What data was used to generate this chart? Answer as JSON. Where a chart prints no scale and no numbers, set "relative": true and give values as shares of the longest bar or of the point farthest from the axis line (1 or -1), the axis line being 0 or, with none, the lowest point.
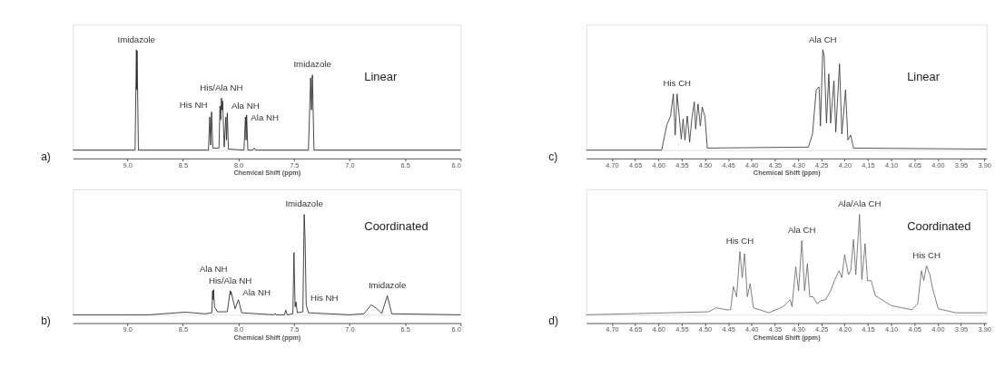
{
  "chart_data": [
    {
      "type": "line",
      "relative": true,
      "xlabel": "Chemical Shift (ppm)",
      "xlim": [
        9.49,
        6.0
      ],
      "xticks": [
        {
          "value": 9,
          "label": "9.0"
        },
        8.5,
        {
          "value": 8,
          "label": "8.0"
        },
        7.5,
        {
          "value": 7,
          "label": "7.0"
        },
        6.5,
        {
          "value": 6,
          "label": "6.0"
        }
      ],
      "grid": false,
      "marker": "none",
      "line_style": "solid",
      "annotations": [
        "a)",
        "Linear",
        {
          "text": "Imidazole",
          "x": 8.918,
          "y": 1.0
        },
        {
          "text": "His/Ala NH",
          "x": 8.153,
          "y": 0.52
        },
        {
          "text": "His NH",
          "x": 8.242,
          "y": 0.38
        },
        {
          "text": "Ala NH",
          "x": 8.1,
          "y": 0.37
        },
        {
          "text": "Ala NH",
          "x": 7.926,
          "y": 0.35
        },
        {
          "text": "Imidazole",
          "x": 7.334,
          "y": 0.75
        }
      ],
      "series": [
        {
          "color": "#222222",
          "x": [
            9.49,
            8.93,
            8.918,
            8.915,
            8.912,
            8.9,
            8.27,
            8.258,
            8.25,
            8.242,
            8.23,
            8.175,
            8.166,
            8.159,
            8.153,
            8.147,
            8.142,
            8.128,
            8.113,
            8.107,
            8.1,
            8.09,
            7.95,
            7.937,
            7.931,
            7.926,
            7.915,
            7.87,
            7.858,
            7.845,
            7.37,
            7.35,
            7.342,
            7.334,
            7.32,
            6.0
          ],
          "values": [
            0,
            0,
            1.0,
            0.6,
            0.99,
            0,
            0,
            0.33,
            0.05,
            0.38,
            0.02,
            0.02,
            0.44,
            0.3,
            0.52,
            0.4,
            0.49,
            0.03,
            0.33,
            0.1,
            0.37,
            0.01,
            0,
            0.33,
            0.1,
            0.35,
            0,
            0,
            0.02,
            0,
            0,
            0.72,
            0.4,
            0.75,
            0,
            0
          ]
        }
      ]
    },
    {
      "type": "line",
      "relative": true,
      "xlabel": "Chemical Shift (ppm)",
      "xlim": [
        4.755,
        3.895
      ],
      "xticks": [
        {
          "value": 4.7,
          "label": "4.70"
        },
        4.65,
        {
          "value": 4.6,
          "label": "4.60"
        },
        4.55,
        {
          "value": 4.5,
          "label": "4.50"
        },
        4.45,
        {
          "value": 4.4,
          "label": "4.40"
        },
        4.35,
        {
          "value": 4.3,
          "label": "4.30"
        },
        4.25,
        {
          "value": 4.2,
          "label": "4.20"
        },
        4.15,
        {
          "value": 4.1,
          "label": "4.10"
        },
        4.05,
        {
          "value": 4,
          "label": "4.00"
        },
        3.95,
        {
          "value": 3.9,
          "label": "3.90"
        }
      ],
      "grid": false,
      "marker": "none",
      "line_style": "solid",
      "annotations": [
        "c)",
        "Linear",
        {
          "text": "His CH",
          "x": 4.56,
          "y": 0.56
        },
        {
          "text": "Ala CH",
          "x": 4.247,
          "y": 1.0
        }
      ],
      "series": [
        {
          "color": "#333333",
          "x": [
            4.755,
            4.593,
            4.582,
            4.574,
            4.568,
            4.564,
            4.56,
            4.555,
            4.551,
            4.547,
            4.543,
            4.538,
            4.533,
            4.528,
            4.523,
            4.52,
            4.515,
            4.51,
            4.506,
            4.5,
            4.495,
            4.278,
            4.269,
            4.261,
            4.255,
            4.252,
            4.247,
            4.244,
            4.239,
            4.234,
            4.23,
            4.223,
            4.219,
            4.211,
            4.206,
            4.198,
            4.193,
            4.187,
            4.181,
            3.895
          ],
          "values": [
            0,
            0,
            0.25,
            0.34,
            0.56,
            0.15,
            0.56,
            0.32,
            0.11,
            0.31,
            0.1,
            0.34,
            0.08,
            0.32,
            0.48,
            0.21,
            0.46,
            0.24,
            0.43,
            0.33,
            0.02,
            0.03,
            0.16,
            0.6,
            0.63,
            0.24,
            1.0,
            0.94,
            0.27,
            0.76,
            0.27,
            0.69,
            0.18,
            0.86,
            0.16,
            0.6,
            0.1,
            0.15,
            0.02,
            0.01
          ]
        }
      ]
    },
    {
      "type": "line",
      "relative": true,
      "xlabel": "Chemical Shift (ppm)",
      "xlim": [
        9.49,
        6.0
      ],
      "xticks": [
        {
          "value": 9,
          "label": "9.0"
        },
        8.5,
        {
          "value": 8,
          "label": "8.0"
        },
        7.5,
        {
          "value": 7,
          "label": "7.0"
        },
        6.5,
        {
          "value": 6,
          "label": "6.0"
        }
      ],
      "grid": false,
      "marker": "none",
      "line_style": "solid",
      "annotations": [
        "b)",
        "Coordinated",
        {
          "text": "Imidazole",
          "x": 7.408,
          "y": 1.0
        },
        {
          "text": "His/Ala NH",
          "x": 8.074,
          "y": 0.24
        },
        {
          "text": "Ala NH",
          "x": 8.224,
          "y": 0.25
        },
        {
          "text": "Ala NH",
          "x": 8.0,
          "y": 0.15
        },
        {
          "text": "His NH",
          "x": 7.39,
          "y": 0.1
        },
        {
          "text": "Imidazole",
          "x": 6.66,
          "y": 0.19
        }
      ],
      "series": [
        {
          "color": "#222222",
          "x": [
            9.49,
            8.8,
            8.48,
            8.3,
            8.24,
            8.232,
            8.228,
            8.224,
            8.215,
            8.205,
            8.19,
            8.1,
            8.074,
            8.07,
            8.066,
            8.03,
            8.0,
            7.97,
            7.68,
            7.67,
            7.66,
            7.585,
            7.574,
            7.56,
            7.51,
            7.5,
            7.49,
            7.482,
            7.47,
            7.42,
            7.408,
            7.4,
            7.39,
            7.37,
            7.0,
            6.87,
            6.805,
            6.758,
            6.71,
            6.66,
            6.62,
            6.0
          ],
          "values": [
            0,
            0,
            0.026,
            0.01,
            0.02,
            0.24,
            0.15,
            0.25,
            0.08,
            0.06,
            0.03,
            0.03,
            0.24,
            0.2,
            0.23,
            0.06,
            0.15,
            0.02,
            0,
            0.013,
            0,
            0,
            0.046,
            0,
            0.01,
            0.62,
            0.08,
            0.13,
            0.02,
            0.03,
            1.0,
            0.76,
            0.1,
            0.02,
            0,
            0.01,
            0.1,
            0.064,
            0.013,
            0.19,
            0.01,
            0
          ]
        }
      ]
    },
    {
      "type": "line",
      "relative": true,
      "xlabel": "Chemical Shift (ppm)",
      "xlim": [
        4.755,
        3.895
      ],
      "xticks": [
        {
          "value": 4.7,
          "label": "4.70"
        },
        4.65,
        {
          "value": 4.6,
          "label": "4.60"
        },
        4.55,
        {
          "value": 4.5,
          "label": "4.50"
        },
        4.45,
        {
          "value": 4.4,
          "label": "4.40"
        },
        4.35,
        {
          "value": 4.3,
          "label": "4.30"
        },
        4.25,
        {
          "value": 4.2,
          "label": "4.20"
        },
        4.15,
        {
          "value": 4.1,
          "label": "4.10"
        },
        4.05,
        {
          "value": 4,
          "label": "4.00"
        },
        3.95,
        {
          "value": 3.9,
          "label": "3.90"
        }
      ],
      "grid": false,
      "marker": "none",
      "line_style": "solid",
      "annotations": [
        "d)",
        "Coordinated",
        {
          "text": "Ala/Ala CH",
          "x": 4.168,
          "y": 1.0
        },
        {
          "text": "Ala CH",
          "x": 4.292,
          "y": 0.74
        },
        {
          "text": "His CH",
          "x": 4.425,
          "y": 0.63
        },
        {
          "text": "His CH",
          "x": 4.024,
          "y": 0.49
        }
      ],
      "series": [
        {
          "color": "#666666",
          "x": [
            4.755,
            4.492,
            4.476,
            4.465,
            4.454,
            4.445,
            4.439,
            4.432,
            4.425,
            4.42,
            4.415,
            4.409,
            4.403,
            4.396,
            4.363,
            4.332,
            4.317,
            4.313,
            4.305,
            4.299,
            4.292,
            4.286,
            4.28,
            4.275,
            4.268,
            4.259,
            4.251,
            4.241,
            4.23,
            4.222,
            4.212,
            4.206,
            4.2,
            4.192,
            4.187,
            4.181,
            4.176,
            4.168,
            4.163,
            4.156,
            4.151,
            4.143,
            4.134,
            4.099,
            4.055,
            4.043,
            4.035,
            4.03,
            4.024,
            4.017,
            4.011,
            3.999,
            3.961,
            3.895
          ],
          "values": [
            0,
            0.03,
            0.07,
            0.06,
            0.05,
            0.05,
            0.28,
            0.18,
            0.63,
            0.37,
            0.61,
            0.18,
            0.31,
            0.07,
            0.02,
            0.08,
            0.15,
            0.08,
            0.48,
            0.24,
            0.74,
            0.24,
            0.51,
            0.18,
            0.18,
            0.11,
            0.14,
            0.15,
            0.24,
            0.34,
            0.44,
            0.37,
            0.6,
            0.4,
            0.44,
            0.75,
            0.4,
            1.0,
            0.35,
            0.71,
            0.34,
            0.34,
            0.19,
            0.09,
            0.05,
            0.11,
            0.44,
            0.34,
            0.49,
            0.4,
            0.26,
            0.06,
            0.02,
            0.02
          ]
        }
      ]
    }
  ]
}
